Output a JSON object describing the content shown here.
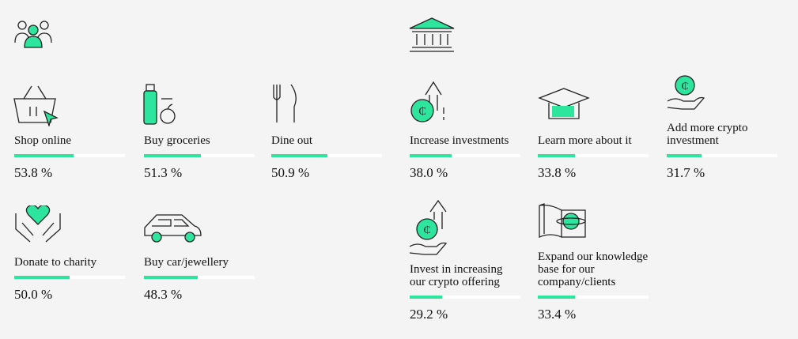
{
  "groups": [
    {
      "items": [
        {
          "label": "Shop online",
          "value": 53.8,
          "value_label": "53.8 %"
        },
        {
          "label": "Buy groceries",
          "value": 51.3,
          "value_label": "51.3 %"
        },
        {
          "label": "Dine out",
          "value": 50.9,
          "value_label": "50.9 %"
        },
        {
          "label": "Donate to charity",
          "value": 50.0,
          "value_label": "50.0 %"
        },
        {
          "label": "Buy car/jewellery",
          "value": 48.3,
          "value_label": "48.3 %"
        }
      ]
    },
    {
      "items": [
        {
          "label": "Increase investments",
          "value": 38.0,
          "value_label": "38.0 %"
        },
        {
          "label": "Learn more about it",
          "value": 33.8,
          "value_label": "33.8 %"
        },
        {
          "label": "Add more crypto investment",
          "value": 31.7,
          "value_label": "31.7 %"
        },
        {
          "label": "Invest in increasing our crypto offering",
          "value": 29.2,
          "value_label": "29.2 %"
        },
        {
          "label": "Expand our knowledge base for our company/clients",
          "value": 33.4,
          "value_label": "33.4 %"
        }
      ]
    }
  ]
}
